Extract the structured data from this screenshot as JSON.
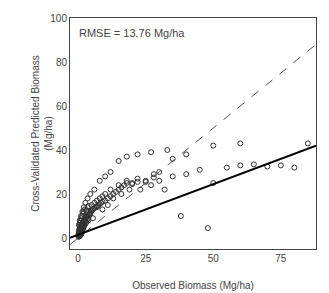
{
  "chart_data": {
    "type": "scatter",
    "xlabel": "Observed Biomass (Mg/ha)",
    "ylabel": "Cross-Validated Predicted Biomass\n(Mg/ha)",
    "annotation": "RMSE = 13.76 Mg/ha",
    "xlim": [
      -3,
      88
    ],
    "ylim": [
      -5,
      100
    ],
    "xticks": [
      0,
      25,
      50,
      75
    ],
    "yticks": [
      0,
      20,
      40,
      60,
      80,
      100
    ],
    "grid": false,
    "series": [
      {
        "type": "scatter",
        "marker": "circle-open",
        "color": "#333333",
        "x": [
          0.1,
          0.2,
          0.2,
          0.3,
          0.3,
          0.4,
          0.4,
          0.5,
          0.5,
          0.5,
          0.6,
          0.6,
          0.7,
          0.7,
          0.8,
          0.8,
          0.8,
          0.9,
          0.9,
          1.0,
          1.0,
          1.0,
          1.0,
          1.1,
          1.1,
          1.2,
          1.2,
          1.3,
          1.3,
          1.4,
          1.4,
          1.5,
          1.5,
          1.6,
          1.6,
          1.7,
          1.8,
          1.8,
          1.9,
          2.0,
          2.0,
          2.1,
          2.2,
          2.3,
          2.4,
          2.5,
          2.6,
          2.7,
          2.8,
          3.0,
          3.0,
          3.2,
          3.5,
          3.8,
          4.0,
          4.2,
          4.5,
          4.8,
          5.0,
          5.5,
          6.0,
          6.5,
          7.0,
          7.5,
          8.0,
          8.5,
          9.0,
          10.0,
          11.0,
          12.0,
          13.0,
          14.0,
          15.0,
          16.0,
          17.0,
          18.0,
          20.0,
          22.0,
          25.0,
          28.0,
          30.0,
          35.0,
          40.0,
          45.0,
          50.0,
          55.0,
          60.0,
          65.0,
          70.0,
          75.0,
          80.0,
          85.0,
          0.3,
          0.5,
          0.7,
          1.0,
          1.2,
          1.5,
          1.8,
          2.0,
          2.5,
          3.0,
          3.5,
          4.0,
          5.0,
          6.0,
          7.0,
          8.0,
          9.0,
          10.0,
          12.0,
          15.0,
          18.0,
          20.0,
          22.0,
          25.0,
          28.0,
          30.0,
          35.0,
          40.0,
          50.0,
          60.0,
          0.4,
          0.8,
          1.3,
          1.7,
          2.2,
          2.8,
          3.3,
          4.5,
          5.5,
          7.0,
          9.0,
          11.0,
          13.0,
          16.0,
          19.0,
          23.0,
          27.0,
          32.0,
          38.0,
          48.0,
          0.6,
          1.1,
          1.6,
          2.1,
          2.7,
          3.5,
          4.5,
          6.0,
          8.0,
          10.0,
          12.0,
          15.0,
          18.0,
          22.0,
          27.0,
          33.0,
          0.9,
          1.5,
          2.3,
          3.8
        ],
        "values": [
          1.0,
          2.0,
          0.5,
          1.5,
          3.0,
          2.5,
          0.8,
          1.0,
          2.0,
          3.5,
          1.5,
          3.0,
          1.0,
          2.5,
          2.0,
          3.0,
          4.0,
          1.5,
          3.5,
          2.0,
          3.0,
          4.0,
          5.0,
          2.5,
          4.5,
          3.0,
          5.0,
          2.0,
          4.0,
          3.5,
          5.5,
          3.0,
          6.0,
          4.0,
          6.5,
          5.0,
          4.5,
          7.0,
          5.5,
          3.5,
          6.0,
          5.0,
          7.0,
          6.0,
          8.0,
          7.5,
          8.5,
          6.5,
          9.0,
          7.0,
          9.5,
          8.0,
          10.0,
          9.0,
          10.5,
          11.0,
          11.5,
          12.0,
          12.5,
          13.0,
          13.5,
          14.0,
          14.5,
          15.0,
          15.5,
          16.0,
          16.5,
          17.0,
          18.0,
          19.0,
          20.0,
          21.0,
          22.0,
          23.0,
          24.0,
          25.0,
          24.5,
          25.5,
          26.0,
          27.5,
          26.0,
          28.0,
          29.0,
          31.0,
          25.0,
          32.0,
          33.0,
          33.5,
          32.5,
          33.0,
          32.0,
          43.0,
          6.0,
          5.5,
          7.0,
          8.0,
          9.0,
          10.0,
          11.0,
          12.0,
          13.0,
          12.5,
          14.0,
          14.5,
          15.0,
          16.0,
          17.0,
          18.0,
          19.0,
          20.0,
          22.0,
          24.0,
          26.0,
          25.0,
          27.0,
          25.5,
          29.0,
          30.0,
          36.0,
          38.0,
          42.0,
          43.0,
          4.0,
          5.0,
          6.0,
          7.0,
          8.0,
          9.5,
          10.0,
          11.0,
          9.0,
          14.0,
          13.0,
          15.0,
          18.0,
          20.0,
          22.0,
          22.0,
          24.0,
          22.0,
          10.0,
          4.5,
          8.0,
          10.0,
          12.0,
          14.0,
          16.0,
          18.0,
          20.0,
          22.0,
          26.0,
          28.0,
          30.0,
          35.0,
          37.0,
          38.0,
          39.0,
          40.0,
          2.0,
          4.0,
          6.0,
          8.0
        ]
      },
      {
        "type": "line",
        "line_style": "dashed",
        "color": "#555555",
        "x": [
          -3,
          88
        ],
        "values": [
          -3,
          88
        ]
      },
      {
        "type": "line",
        "line_style": "solid",
        "color": "black",
        "x": [
          -3,
          88
        ],
        "values": [
          0.12,
          41.98
        ]
      }
    ]
  }
}
